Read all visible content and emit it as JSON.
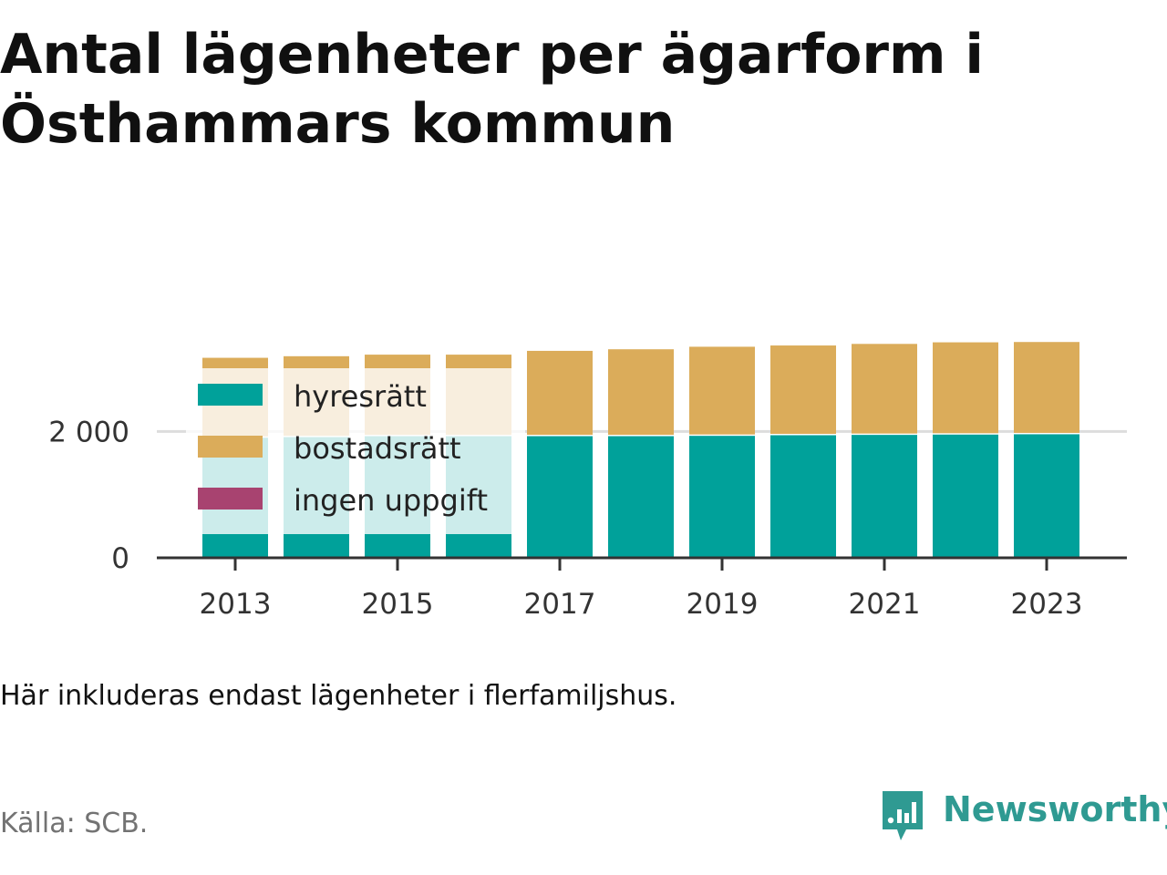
{
  "title": "Antal lägenheter per ägarform i Östhammars kommun",
  "note": "Här inkluderas endast lägenheter i flerfamiljshus.",
  "source": "Källa: SCB.",
  "brand": {
    "name": "Newsworthy",
    "icon": "newsworthy-logo-icon",
    "color": "#2f9a92"
  },
  "colors": {
    "hyresratt": "#00a19a",
    "bostadsratt": "#dbac5a",
    "ingen_uppgift": "#a84370",
    "axis": "#333333",
    "grid": "#dddddd"
  },
  "chart_data": {
    "type": "bar",
    "stacked": true,
    "categories": [
      "2013",
      "2014",
      "2015",
      "2016",
      "2017",
      "2018",
      "2019",
      "2020",
      "2021",
      "2022",
      "2023"
    ],
    "series": [
      {
        "name": "hyresrätt",
        "color": "#00a19a",
        "values": [
          1900,
          1910,
          1925,
          1925,
          1925,
          1925,
          1930,
          1940,
          1945,
          1950,
          1955
        ]
      },
      {
        "name": "bostadsrätt",
        "color": "#dbac5a",
        "values": [
          1265,
          1280,
          1290,
          1290,
          1350,
          1375,
          1410,
          1420,
          1440,
          1460,
          1460
        ]
      },
      {
        "name": "ingen uppgift",
        "color": "#a84370",
        "values": [
          0,
          0,
          0,
          0,
          0,
          0,
          0,
          0,
          0,
          0,
          0
        ]
      }
    ],
    "x_tick_labels": [
      "2013",
      "2015",
      "2017",
      "2019",
      "2021",
      "2023"
    ],
    "y_ticks": [
      0,
      2000
    ],
    "y_tick_labels": [
      "0",
      "2 000"
    ],
    "ylim": [
      0,
      4500
    ],
    "grid": true,
    "legend_position": "top-left"
  }
}
